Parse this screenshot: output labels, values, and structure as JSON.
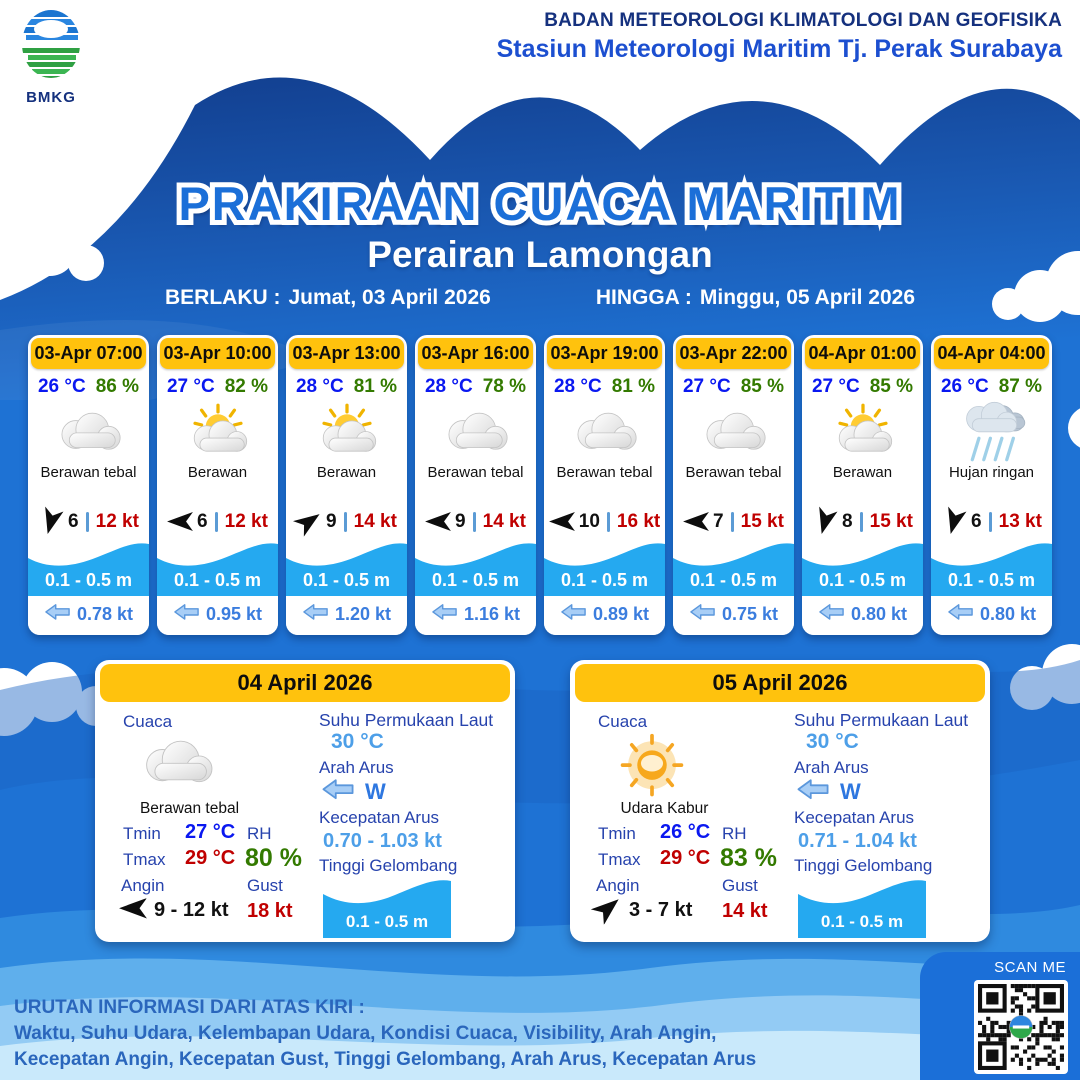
{
  "header": {
    "logo_label": "BMKG",
    "org_line1": "BADAN METEOROLOGI KLIMATOLOGI DAN GEOFISIKA",
    "org_line2": "Stasiun Meteorologi Maritim Tj. Perak Surabaya"
  },
  "title": "PRAKIRAAN CUACA MARITIM",
  "subtitle": "Perairan Lamongan",
  "validity": {
    "berlaku_label": "BERLAKU :",
    "berlaku_value": "Jumat, 03 April 2026",
    "hingga_label": "HINGGA :",
    "hingga_value": "Minggu, 05 April 2026"
  },
  "hourly": [
    {
      "time": "03-Apr 07:00",
      "temp": "26 °C",
      "rh": "86 %",
      "icon": "cloud-icon",
      "desc": "Berawan tebal",
      "wind_deg": 105,
      "wind_speed": "6",
      "gust": "12 kt",
      "wave": "0.1 - 0.5 m",
      "current": "0.78 kt"
    },
    {
      "time": "03-Apr 10:00",
      "temp": "27 °C",
      "rh": "82 %",
      "icon": "sun-cloud-icon",
      "desc": "Berawan",
      "wind_deg": 180,
      "wind_speed": "6",
      "gust": "12 kt",
      "wave": "0.1 - 0.5 m",
      "current": "0.95 kt"
    },
    {
      "time": "03-Apr 13:00",
      "temp": "28 °C",
      "rh": "81 %",
      "icon": "sun-cloud-icon",
      "desc": "Berawan",
      "wind_deg": -35,
      "wind_speed": "9",
      "gust": "14 kt",
      "wave": "0.1 - 0.5 m",
      "current": "1.20 kt"
    },
    {
      "time": "03-Apr 16:00",
      "temp": "28 °C",
      "rh": "78 %",
      "icon": "cloud-icon",
      "desc": "Berawan tebal",
      "wind_deg": 180,
      "wind_speed": "9",
      "gust": "14 kt",
      "wave": "0.1 - 0.5 m",
      "current": "1.16 kt"
    },
    {
      "time": "03-Apr 19:00",
      "temp": "28 °C",
      "rh": "81 %",
      "icon": "cloud-icon",
      "desc": "Berawan tebal",
      "wind_deg": 180,
      "wind_speed": "10",
      "gust": "16 kt",
      "wave": "0.1 - 0.5 m",
      "current": "0.89 kt"
    },
    {
      "time": "03-Apr 22:00",
      "temp": "27 °C",
      "rh": "85 %",
      "icon": "cloud-icon",
      "desc": "Berawan tebal",
      "wind_deg": 180,
      "wind_speed": "7",
      "gust": "15 kt",
      "wave": "0.1 - 0.5 m",
      "current": "0.75 kt"
    },
    {
      "time": "04-Apr 01:00",
      "temp": "27 °C",
      "rh": "85 %",
      "icon": "sun-cloud-icon",
      "desc": "Berawan",
      "wind_deg": 105,
      "wind_speed": "8",
      "gust": "15 kt",
      "wave": "0.1 - 0.5 m",
      "current": "0.80 kt"
    },
    {
      "time": "04-Apr 04:00",
      "temp": "26 °C",
      "rh": "87 %",
      "icon": "rain-icon",
      "desc": "Hujan ringan",
      "wind_deg": 105,
      "wind_speed": "6",
      "gust": "13 kt",
      "wave": "0.1 - 0.5 m",
      "current": "0.80 kt"
    }
  ],
  "daily_labels": {
    "cuaca": "Cuaca",
    "tmin": "Tmin",
    "tmax": "Tmax",
    "angin": "Angin",
    "rh": "RH",
    "gust": "Gust",
    "sst": "Suhu Permukaan Laut",
    "arah_arus": "Arah Arus",
    "kec_arus": "Kecepatan Arus",
    "gelombang": "Tinggi Gelombang"
  },
  "daily": [
    {
      "date": "04 April 2026",
      "icon": "cloud-icon",
      "desc": "Berawan tebal",
      "tmin": "27 °C",
      "tmax": "29 °C",
      "wind_deg": 180,
      "wind": "9 - 12 kt",
      "rh": "80 %",
      "gust": "18 kt",
      "sst": "30 °C",
      "current_dir": "W",
      "current_speed": "0.70 - 1.03 kt",
      "wave": "0.1 - 0.5 m"
    },
    {
      "date": "05 April 2026",
      "icon": "sun-haze-icon",
      "desc": "Udara Kabur",
      "tmin": "26 °C",
      "tmax": "29 °C",
      "wind_deg": -40,
      "wind": "3 - 7 kt",
      "rh": "83 %",
      "gust": "14 kt",
      "sst": "30 °C",
      "current_dir": "W",
      "current_speed": "0.71 - 1.04 kt",
      "wave": "0.1 - 0.5 m"
    }
  ],
  "footer": {
    "line1": "URUTAN INFORMASI DARI ATAS KIRI :",
    "line2": "Waktu, Suhu Udara, Kelembapan Udara, Kondisi Cuaca, Visibility, Arah Angin,",
    "line3": "Kecepatan Angin, Kecepatan Gust, Tinggi Gelombang, Arah Arus, Kecepatan Arus",
    "scan_label": "SCAN ME"
  },
  "colors": {
    "main_blue": "#1E72D4",
    "navy_wave": "#123E8E",
    "header_yellow": "#FFC20D",
    "cyan_wave": "#25A9F0",
    "temp_blue": "#0A18F0",
    "humidity_green": "#337A00",
    "gust_red": "#C00000",
    "current_blue": "#3B7DDE",
    "label_blue": "#2743AD",
    "value_light_blue": "#4D9FE8",
    "footer_blue": "#2A66BC"
  }
}
